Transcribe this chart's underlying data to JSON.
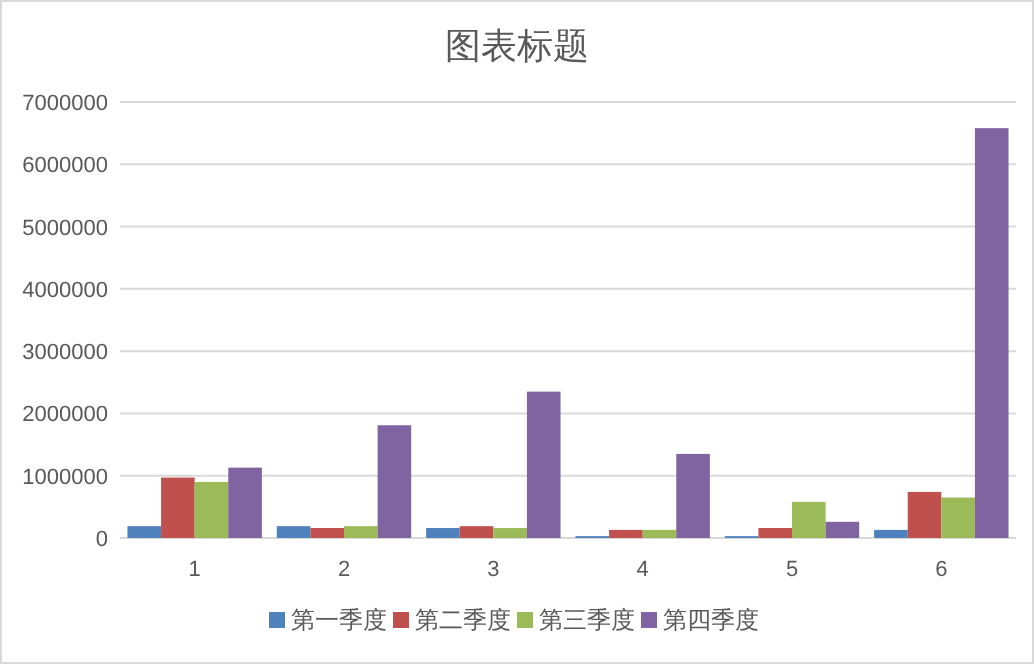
{
  "chart_data": {
    "type": "bar",
    "title": "图表标题",
    "categories": [
      "1",
      "2",
      "3",
      "4",
      "5",
      "6"
    ],
    "series": [
      {
        "name": "第一季度",
        "color": "#4f81bd",
        "values": [
          190000,
          190000,
          160000,
          30000,
          30000,
          130000
        ]
      },
      {
        "name": "第二季度",
        "color": "#c0504d",
        "values": [
          970000,
          160000,
          190000,
          130000,
          160000,
          740000
        ]
      },
      {
        "name": "第三季度",
        "color": "#9bbb59",
        "values": [
          900000,
          190000,
          160000,
          130000,
          580000,
          650000
        ]
      },
      {
        "name": "第四季度",
        "color": "#8064a2",
        "values": [
          1130000,
          1810000,
          2350000,
          1350000,
          260000,
          6580000
        ]
      }
    ],
    "ylim": [
      0,
      7000000
    ],
    "yticks": [
      0,
      1000000,
      2000000,
      3000000,
      4000000,
      5000000,
      6000000,
      7000000
    ],
    "grid": "y",
    "legend": "bottom"
  }
}
